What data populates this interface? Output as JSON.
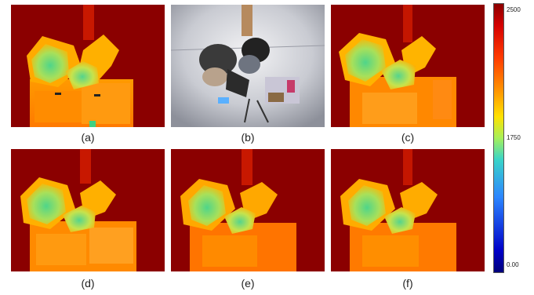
{
  "panels": [
    {
      "caption": "(a)"
    },
    {
      "caption": "(b)"
    },
    {
      "caption": "(c)"
    },
    {
      "caption": "(d)"
    },
    {
      "caption": "(e)"
    },
    {
      "caption": "(f)"
    }
  ],
  "colorbar": {
    "ticks": [
      "2500",
      "1750",
      "0.00"
    ],
    "colors": {
      "far": "#8b0000",
      "mid": "#ffe100",
      "near": "#2fd0b0",
      "low": "#00007a"
    }
  }
}
